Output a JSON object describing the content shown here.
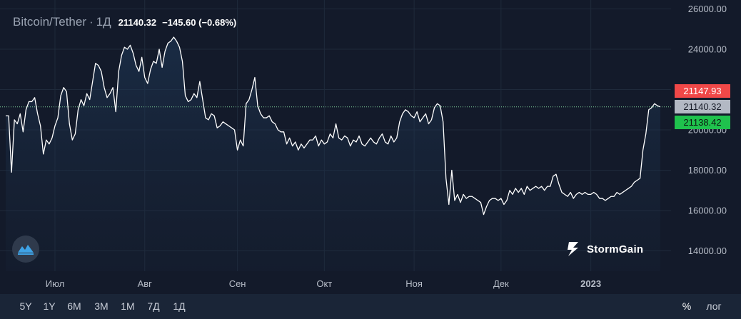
{
  "header": {
    "symbol": "Bitcoin/Tether",
    "separator": "·",
    "timeframe": "1Д",
    "last_price": "21140.32",
    "change": "−145.60 (−0.68%)"
  },
  "price_tags": {
    "ask": "21147.93",
    "last": "21140.32",
    "bid": "21138.42"
  },
  "colors": {
    "background": "#131a2a",
    "line": "#ffffff",
    "ask_tag": "#f04848",
    "last_tag": "#b3b9c4",
    "bid_tag": "#1fc24d",
    "last_price_line": "#7fd09a",
    "grid": "#1f2a3b"
  },
  "brand": {
    "name": "StormGain",
    "logo_icon": "stormgain-bolt-icon",
    "badge_icon": "mountain-chart-icon"
  },
  "toolbar": {
    "ranges": [
      "5Y",
      "1Y",
      "6M",
      "3M",
      "1M",
      "7Д",
      "1Д"
    ],
    "percent": "%",
    "log": "лог"
  },
  "chart_data": {
    "type": "area",
    "title": "Bitcoin/Tether",
    "xlabel": "",
    "ylabel": "",
    "ylim": [
      13000,
      26200
    ],
    "y_ticks": [
      14000,
      16000,
      18000,
      20000,
      22000,
      24000,
      26000
    ],
    "y_tick_labels": [
      "14000.00",
      "16000.00",
      "18000.00",
      "20000.00",
      "22000.00",
      "24000.00",
      "26000.00"
    ],
    "x_tick_labels": [
      "Июл",
      "Авг",
      "Сен",
      "Окт",
      "Ноя",
      "Дек",
      "2023"
    ],
    "x_tick_index": [
      17,
      48,
      80,
      110,
      141,
      171,
      202
    ],
    "last_price_level": 21140.32,
    "grid": true,
    "series": [
      {
        "values": [
          20700,
          20700,
          17900,
          20500,
          20300,
          20800,
          19900,
          21000,
          21400,
          21400,
          21600,
          20800,
          20200,
          18800,
          19500,
          19300,
          19600,
          20200,
          20600,
          21700,
          22100,
          21900,
          20300,
          19500,
          19800,
          21000,
          21500,
          21200,
          21800,
          21500,
          22400,
          23300,
          23200,
          22900,
          22100,
          21600,
          21800,
          22100,
          20900,
          22900,
          23700,
          24100,
          24000,
          24200,
          23800,
          23200,
          22900,
          23600,
          22600,
          22300,
          23000,
          23400,
          23300,
          24000,
          23100,
          23900,
          24300,
          24400,
          24600,
          24400,
          24100,
          23400,
          21700,
          21400,
          21500,
          21800,
          21600,
          22400,
          21500,
          20600,
          20500,
          20800,
          20700,
          20100,
          20200,
          20400,
          20300,
          20200,
          20100,
          20000,
          19000,
          19500,
          19200,
          21300,
          21500,
          22000,
          22600,
          21200,
          20800,
          20600,
          20600,
          20700,
          20400,
          20300,
          20000,
          19900,
          19900,
          19300,
          19600,
          19200,
          19400,
          19000,
          19300,
          19100,
          19300,
          19500,
          19500,
          19700,
          19200,
          19500,
          19300,
          19400,
          19800,
          19600,
          20300,
          19600,
          19500,
          19700,
          19600,
          19200,
          19500,
          19400,
          19700,
          19300,
          19200,
          19400,
          19600,
          19400,
          19300,
          19600,
          19800,
          19400,
          19300,
          19700,
          19400,
          19600,
          20400,
          20800,
          21000,
          20900,
          20700,
          20600,
          20900,
          20400,
          20600,
          20800,
          20300,
          20500,
          21100,
          21300,
          21200,
          20400,
          17600,
          16300,
          18000,
          16500,
          16800,
          16400,
          16800,
          16600,
          16700,
          16700,
          16600,
          16500,
          16400,
          15800,
          16200,
          16500,
          16600,
          16600,
          16500,
          16600,
          16300,
          16500,
          17000,
          16800,
          17100,
          16900,
          17100,
          16800,
          17200,
          17000,
          17100,
          17200,
          17100,
          17200,
          17000,
          17200,
          17200,
          17700,
          17800,
          17300,
          16900,
          16800,
          16700,
          16900,
          16600,
          16800,
          16900,
          16800,
          16900,
          16800,
          16800,
          16900,
          16800,
          16600,
          16600,
          16500,
          16600,
          16700,
          16700,
          16900,
          16800,
          16900,
          17000,
          17100,
          17200,
          17400,
          17500,
          17600,
          19000,
          19800,
          21000,
          21100,
          21300,
          21200,
          21140.32
        ]
      }
    ]
  }
}
